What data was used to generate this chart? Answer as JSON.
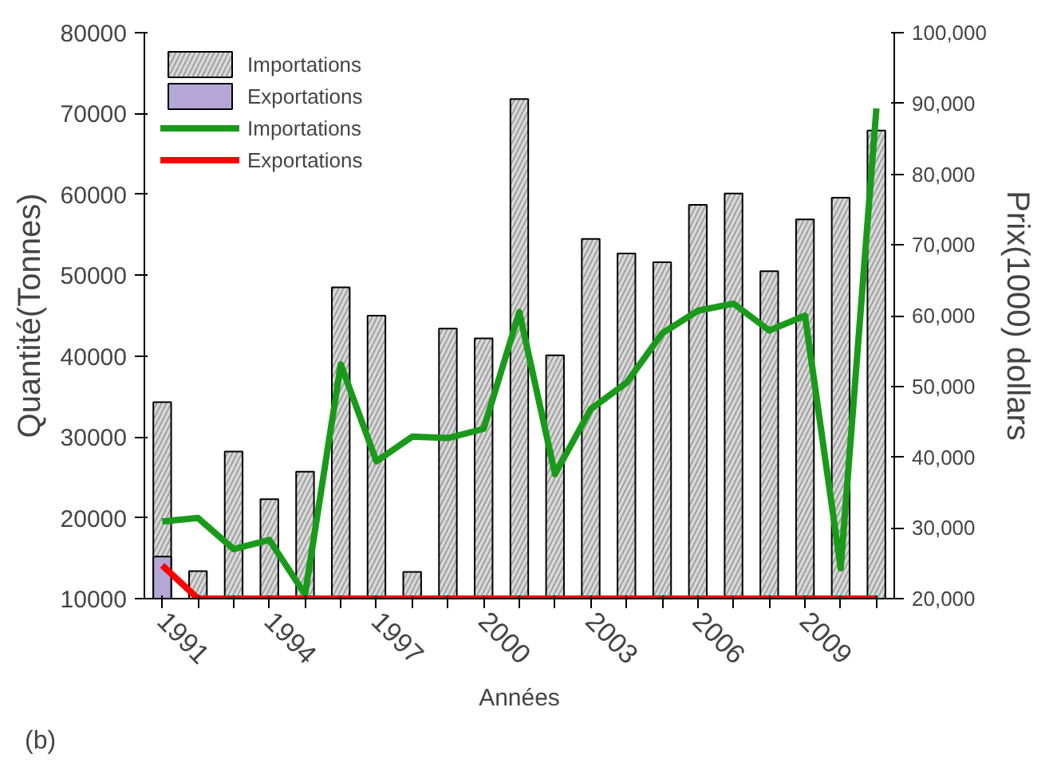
{
  "chart_data": {
    "type": "bar",
    "xlabel": "Années",
    "ylabel": "Quantité(Tonnes)",
    "y2label": "Prix(1000) dollars",
    "annotations": [
      "(b)"
    ],
    "x": [
      1991,
      1992,
      1993,
      1994,
      1995,
      1996,
      1997,
      1998,
      1999,
      2000,
      2001,
      2002,
      2003,
      2004,
      2005,
      2006,
      2007,
      2008,
      2009,
      2010,
      2011
    ],
    "xlim": [
      1990.5,
      2011.5
    ],
    "xticks": [
      1991,
      {
        "value": 1992,
        "label": null
      },
      {
        "value": 1993,
        "label": null
      },
      1994,
      {
        "value": 1995,
        "label": null
      },
      {
        "value": 1996,
        "label": null
      },
      1997,
      {
        "value": 1998,
        "label": null
      },
      {
        "value": 1999,
        "label": null
      },
      2000,
      {
        "value": 2001,
        "label": null
      },
      {
        "value": 2002,
        "label": null
      },
      2003,
      {
        "value": 2004,
        "label": null
      },
      {
        "value": 2005,
        "label": null
      },
      2006,
      {
        "value": 2007,
        "label": null
      },
      {
        "value": 2008,
        "label": null
      },
      2009,
      {
        "value": 2010,
        "label": null
      },
      {
        "value": 2011,
        "label": null
      }
    ],
    "ylim": [
      10000,
      80000
    ],
    "yticks": [
      10000,
      20000,
      30000,
      40000,
      50000,
      60000,
      70000,
      80000
    ],
    "y2lim": [
      20000,
      100000
    ],
    "y2ticks": [
      {
        "value": 20000,
        "label": "20,000"
      },
      {
        "value": 30000,
        "label": "30,000"
      },
      {
        "value": 40000,
        "label": "40,000"
      },
      {
        "value": 50000,
        "label": "50,000"
      },
      {
        "value": 60000,
        "label": "60,000"
      },
      {
        "value": 70000,
        "label": "70,000"
      },
      {
        "value": 80000,
        "label": "80,000"
      },
      {
        "value": 90000,
        "label": "90,000"
      },
      {
        "value": 100000,
        "label": "100,000"
      }
    ],
    "grid": false,
    "legend": "top left",
    "series": [
      {
        "name": "Importations",
        "color": "#d9d9d9",
        "values": [
          34300,
          13400,
          28200,
          22300,
          25700,
          48500,
          45000,
          13300,
          43400,
          42200,
          71800,
          40100,
          54500,
          52700,
          51600,
          58700,
          60100,
          50500,
          56900,
          59600,
          67900
        ]
      },
      {
        "name": "Exportations",
        "color": "#b4a7d6",
        "values": [
          15200,
          null,
          null,
          null,
          null,
          null,
          null,
          null,
          null,
          null,
          null,
          null,
          null,
          null,
          null,
          null,
          null,
          null,
          null,
          null,
          null
        ]
      },
      {
        "name": "Importations",
        "type": "line",
        "axis": "y2",
        "color": "#1a9a1a",
        "values": [
          30900,
          31400,
          27000,
          28300,
          20600,
          53100,
          39400,
          42900,
          42700,
          44000,
          60500,
          37600,
          46800,
          50500,
          57500,
          60700,
          61700,
          57900,
          60000,
          24300,
          89300
        ]
      },
      {
        "name": "Exportations",
        "type": "line",
        "axis": "y2",
        "color": "#ff0000",
        "values": [
          24700,
          20000,
          20000,
          20000,
          20000,
          20000,
          20000,
          20000,
          20000,
          20000,
          20000,
          20000,
          20000,
          20000,
          20000,
          20000,
          20000,
          20000,
          20000,
          20000,
          20000
        ]
      }
    ]
  }
}
